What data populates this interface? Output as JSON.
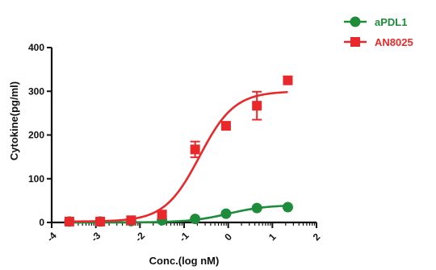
{
  "chart_data": {
    "type": "scatter",
    "title": "",
    "xlabel": "Conc.(log nM)",
    "ylabel": "Cytokine(pg/ml)",
    "xlim": [
      -4,
      2
    ],
    "ylim": [
      0,
      400
    ],
    "x_ticks": [
      "-4",
      "-3",
      "-2",
      "-1",
      "0",
      "1",
      "2"
    ],
    "y_ticks": [
      "0",
      "100",
      "200",
      "300",
      "400"
    ],
    "legend_position": "top-right",
    "grid": false,
    "series": [
      {
        "name": "aPDL1",
        "color": "#1e8c3a",
        "marker": "circle",
        "x": [
          -3.6,
          -2.9,
          -2.2,
          -1.5,
          -0.75,
          -0.05,
          0.65,
          1.35
        ],
        "y": [
          2,
          2,
          3,
          5,
          8,
          20,
          33,
          35
        ],
        "error": [
          0,
          0,
          0,
          0,
          0,
          2,
          3,
          3
        ],
        "fit": {
          "bottom": 0,
          "top": 40,
          "logEC50": 0.0,
          "hill": 1.0
        }
      },
      {
        "name": "AN8025",
        "color": "#e8282b",
        "marker": "square",
        "x": [
          -3.6,
          -2.9,
          -2.2,
          -1.5,
          -0.75,
          -0.05,
          0.65,
          1.35
        ],
        "y": [
          2,
          2,
          5,
          18,
          167,
          221,
          267,
          325
        ],
        "error": [
          0,
          0,
          0,
          0,
          18,
          0,
          32,
          0
        ],
        "fit": {
          "bottom": 2,
          "top": 300,
          "logEC50": -0.65,
          "hill": 1.1
        }
      }
    ]
  }
}
